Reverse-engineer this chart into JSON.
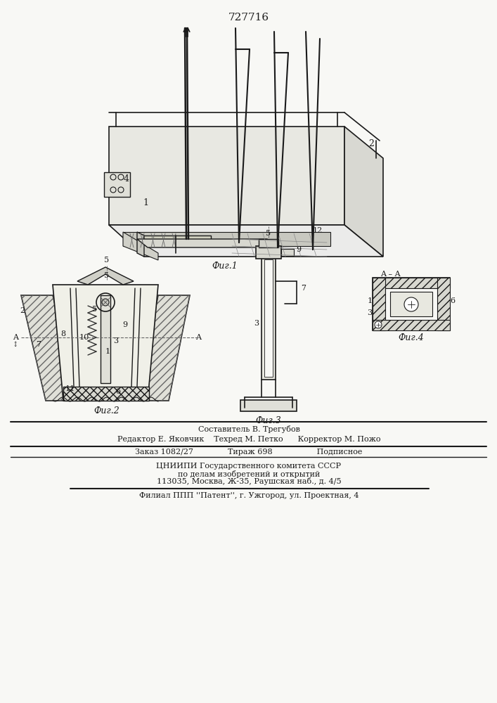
{
  "patent_number": "727716",
  "background_color": "#f8f8f5",
  "line_color": "#1a1a1a",
  "bottom_texts": {
    "composer": "Составитель В. Трегубов",
    "editor_line": "Редактор Е. Яковчик    Техред М. Петко      Корректор М. Пожо",
    "order_line": "Заказ 1082/27              Тираж 698                  Подписное",
    "org1": "ЦНИИПИ Государственного комитета СССР",
    "org2": "по делам изобретений и открытий",
    "org3": "113035, Москва, Ж-35, Раушская наб., д. 4/5",
    "filial": "Филиал ППП ''Патент'', г. Ужгород, ул. Проектная, 4"
  }
}
